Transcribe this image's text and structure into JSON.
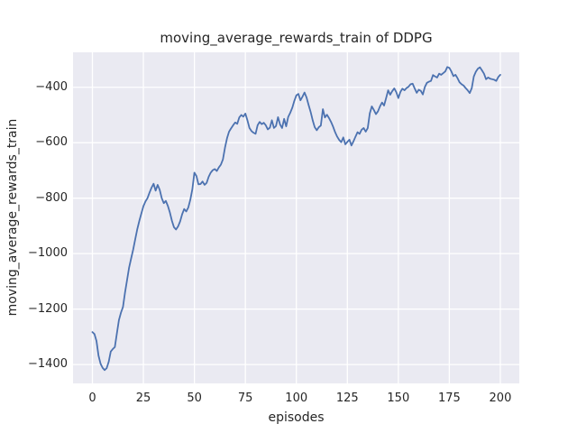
{
  "style": {
    "figure_bg": "#FFFFFF",
    "plot_bg": "#EAEAF2",
    "grid_color": "#FFFFFF",
    "text_color": "#262626",
    "line_color": "#4C72B0"
  },
  "chart_data": {
    "type": "line",
    "title": "moving_average_rewards_train of DDPG",
    "xlabel": "episodes",
    "ylabel": "moving_average_rewards_train",
    "grid": true,
    "legend_position": "none",
    "xlim": [
      -9.5,
      209.3
    ],
    "ylim": [
      -1468,
      -274
    ],
    "x_ticks": [
      0,
      25,
      50,
      75,
      100,
      125,
      150,
      175,
      200
    ],
    "x_tick_labels": [
      "0",
      "25",
      "50",
      "75",
      "100",
      "125",
      "150",
      "175",
      "200"
    ],
    "y_ticks": [
      -400,
      -600,
      -800,
      -1000,
      -1200,
      -1400
    ],
    "y_tick_labels": [
      "−400",
      "−600",
      "−800",
      "−1000",
      "−1200",
      "−1400"
    ],
    "series": [
      {
        "name": "moving_average_rewards_train",
        "color": "#4C72B0",
        "x_start": 0,
        "x_step": 1,
        "values": [
          -1283,
          -1290,
          -1315,
          -1368,
          -1397,
          -1412,
          -1420,
          -1413,
          -1390,
          -1353,
          -1344,
          -1337,
          -1288,
          -1240,
          -1213,
          -1192,
          -1140,
          -1095,
          -1050,
          -1017,
          -985,
          -948,
          -912,
          -882,
          -855,
          -829,
          -812,
          -800,
          -780,
          -762,
          -748,
          -773,
          -752,
          -770,
          -800,
          -818,
          -810,
          -828,
          -852,
          -882,
          -905,
          -913,
          -902,
          -884,
          -858,
          -839,
          -848,
          -834,
          -806,
          -768,
          -708,
          -720,
          -750,
          -749,
          -740,
          -752,
          -745,
          -723,
          -708,
          -699,
          -695,
          -702,
          -689,
          -679,
          -660,
          -618,
          -584,
          -560,
          -548,
          -537,
          -527,
          -532,
          -509,
          -500,
          -506,
          -495,
          -519,
          -547,
          -558,
          -564,
          -568,
          -537,
          -525,
          -533,
          -528,
          -537,
          -552,
          -546,
          -519,
          -547,
          -540,
          -508,
          -534,
          -547,
          -514,
          -541,
          -507,
          -492,
          -474,
          -449,
          -429,
          -424,
          -447,
          -434,
          -419,
          -437,
          -464,
          -489,
          -519,
          -544,
          -555,
          -544,
          -538,
          -479,
          -509,
          -499,
          -511,
          -525,
          -542,
          -562,
          -578,
          -590,
          -598,
          -581,
          -606,
          -597,
          -589,
          -610,
          -595,
          -578,
          -562,
          -568,
          -553,
          -547,
          -560,
          -547,
          -494,
          -469,
          -482,
          -497,
          -487,
          -469,
          -455,
          -466,
          -439,
          -411,
          -427,
          -414,
          -404,
          -418,
          -439,
          -417,
          -405,
          -411,
          -403,
          -398,
          -389,
          -387,
          -404,
          -420,
          -409,
          -413,
          -426,
          -399,
          -384,
          -380,
          -377,
          -356,
          -361,
          -365,
          -351,
          -355,
          -349,
          -343,
          -327,
          -330,
          -343,
          -360,
          -355,
          -367,
          -382,
          -389,
          -394,
          -403,
          -411,
          -421,
          -403,
          -361,
          -344,
          -333,
          -328,
          -339,
          -351,
          -371,
          -365,
          -369,
          -371,
          -373,
          -377,
          -363,
          -355
        ]
      }
    ]
  }
}
